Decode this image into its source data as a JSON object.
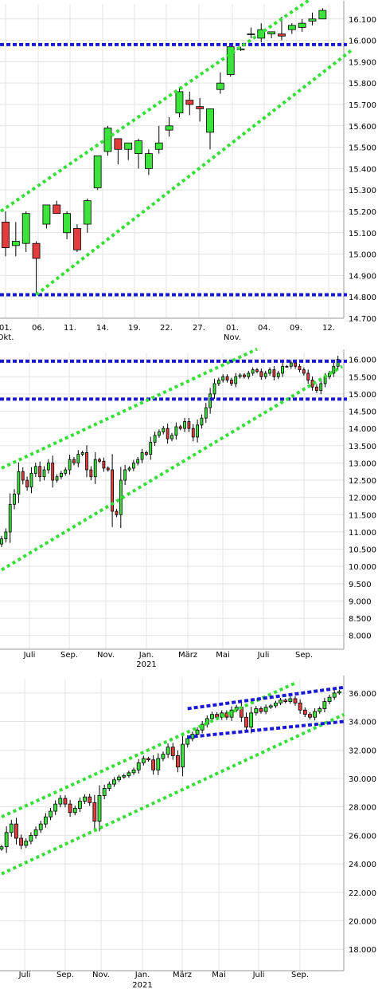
{
  "chart_data": [
    {
      "type": "candlestick",
      "ylim": [
        14700,
        16170
      ],
      "y_ticks": [
        "16.100",
        "16.000",
        "15.900",
        "15.800",
        "15.700",
        "15.600",
        "15.500",
        "15.400",
        "15.300",
        "15.200",
        "15.100",
        "15.000",
        "14.900",
        "14.800",
        "14.700"
      ],
      "y_tick_values": [
        16100,
        16000,
        15900,
        15800,
        15700,
        15600,
        15500,
        15400,
        15300,
        15200,
        15100,
        15000,
        14900,
        14800,
        14700
      ],
      "x_ticks": [
        {
          "label": "01.",
          "sub": "Okt.",
          "i": 0
        },
        {
          "label": "06.",
          "sub": "",
          "i": 3
        },
        {
          "label": "11.",
          "sub": "",
          "i": 6
        },
        {
          "label": "14.",
          "sub": "",
          "i": 9
        },
        {
          "label": "19.",
          "sub": "",
          "i": 12
        },
        {
          "label": "22.",
          "sub": "",
          "i": 15
        },
        {
          "label": "27.",
          "sub": "",
          "i": 18
        },
        {
          "label": "01.",
          "sub": "Nov.",
          "i": 21
        },
        {
          "label": "04.",
          "sub": "",
          "i": 24
        },
        {
          "label": "09.",
          "sub": "",
          "i": 27
        },
        {
          "label": "12.",
          "sub": "",
          "i": 30
        }
      ],
      "candles": [
        [
          15150,
          15200,
          14990,
          15030
        ],
        [
          15040,
          15150,
          14990,
          15060
        ],
        [
          15050,
          15200,
          15010,
          15190
        ],
        [
          15050,
          15060,
          14820,
          14980
        ],
        [
          15140,
          15230,
          15120,
          15230
        ],
        [
          15230,
          15250,
          15190,
          15190
        ],
        [
          15100,
          15200,
          15070,
          15190
        ],
        [
          15120,
          15140,
          15010,
          15020
        ],
        [
          15140,
          15260,
          15100,
          15250
        ],
        [
          15310,
          15450,
          15300,
          15460
        ],
        [
          15480,
          15600,
          15460,
          15590
        ],
        [
          15540,
          15540,
          15420,
          15490
        ],
        [
          15490,
          15510,
          15440,
          15520
        ],
        [
          15470,
          15540,
          15400,
          15530
        ],
        [
          15400,
          15490,
          15370,
          15470
        ],
        [
          15490,
          15600,
          15470,
          15520
        ],
        [
          15580,
          15640,
          15550,
          15600
        ],
        [
          15660,
          15780,
          15640,
          15760
        ],
        [
          15720,
          15760,
          15650,
          15700
        ],
        [
          15690,
          15730,
          15620,
          15680
        ],
        [
          15570,
          15680,
          15490,
          15680
        ],
        [
          15770,
          15850,
          15750,
          15800
        ],
        [
          15840,
          15960,
          15830,
          15970
        ],
        [
          15960,
          15970,
          15950,
          15960
        ],
        [
          16030,
          16060,
          16010,
          16030
        ],
        [
          16010,
          16080,
          15990,
          16050
        ],
        [
          16030,
          16030,
          16010,
          16040
        ],
        [
          16030,
          16110,
          16000,
          16020
        ],
        [
          16050,
          16080,
          16030,
          16070
        ],
        [
          16060,
          16100,
          16040,
          16080
        ],
        [
          16090,
          16130,
          16070,
          16100
        ],
        [
          16100,
          16150,
          16100,
          16140
        ]
      ],
      "horizontal_lines": [
        15980,
        14810
      ],
      "trend_channel": {
        "upper": [
          [
            -2,
            15150
          ],
          [
            34,
            16330
          ]
        ],
        "lower": [
          [
            3,
            14810
          ],
          [
            34,
            15960
          ]
        ]
      }
    },
    {
      "type": "candlestick",
      "ylim": [
        7600,
        16200
      ],
      "y_ticks": [
        "16.000",
        "15.500",
        "15.000",
        "14.500",
        "14.000",
        "13.500",
        "13.000",
        "12.500",
        "12.000",
        "11.500",
        "11.000",
        "10.500",
        "10.000",
        "9.500",
        "9.000",
        "8.500",
        "8.000"
      ],
      "y_tick_values": [
        16000,
        15500,
        15000,
        14500,
        14000,
        13500,
        13000,
        12500,
        12000,
        11500,
        11000,
        10500,
        10000,
        9500,
        9000,
        8500,
        8000
      ],
      "x_ticks": [
        {
          "label": "Juli",
          "sub": ""
        },
        {
          "label": "Sep.",
          "sub": ""
        },
        {
          "label": "Nov.",
          "sub": ""
        },
        {
          "label": "Jan.",
          "sub": "2021"
        },
        {
          "label": "März",
          "sub": ""
        },
        {
          "label": "Mai",
          "sub": ""
        },
        {
          "label": "Juli",
          "sub": ""
        },
        {
          "label": "Sep.",
          "sub": ""
        }
      ],
      "closes": [
        10800,
        11000,
        11800,
        12100,
        12750,
        12500,
        12300,
        12700,
        12900,
        12600,
        12800,
        13000,
        12500,
        12600,
        12700,
        12800,
        13100,
        13000,
        13250,
        13300,
        12800,
        12600,
        13100,
        13050,
        12850,
        12800,
        11600,
        11500,
        12500,
        12800,
        12850,
        13000,
        13100,
        13300,
        13250,
        13600,
        13800,
        13900,
        14000,
        13700,
        13800,
        14050,
        14000,
        14200,
        14000,
        13750,
        14100,
        14300,
        14600,
        15000,
        15300,
        15400,
        15500,
        15400,
        15300,
        15500,
        15550,
        15500,
        15600,
        15700,
        15650,
        15500,
        15600,
        15700,
        15500,
        15600,
        15800,
        15800,
        15900,
        15800,
        15700,
        15600,
        15400,
        15200,
        15100,
        15300,
        15500,
        15600,
        15800,
        16000
      ],
      "horizontal_lines": [
        15950,
        14850
      ],
      "trend_channel": {
        "upper": [
          [
            0,
            12850
          ],
          [
            60,
            16300
          ]
        ],
        "lower": [
          [
            0,
            9900
          ],
          [
            80,
            15800
          ]
        ]
      }
    },
    {
      "type": "candlestick",
      "ylim": [
        16500,
        37000
      ],
      "y_ticks": [
        "36.000",
        "34.000",
        "32.000",
        "30.000",
        "28.000",
        "26.000",
        "24.000",
        "22.000",
        "20.000",
        "18.000"
      ],
      "y_tick_values": [
        36000,
        34000,
        32000,
        30000,
        28000,
        26000,
        24000,
        22000,
        20000,
        18000
      ],
      "x_ticks": [
        {
          "label": "Juli",
          "sub": ""
        },
        {
          "label": "Sep.",
          "sub": ""
        },
        {
          "label": "Nov.",
          "sub": ""
        },
        {
          "label": "Jan.",
          "sub": "2021"
        },
        {
          "label": "März",
          "sub": ""
        },
        {
          "label": "Mai",
          "sub": ""
        },
        {
          "label": "Juli",
          "sub": ""
        },
        {
          "label": "Sep.",
          "sub": ""
        }
      ],
      "closes": [
        25200,
        26200,
        26800,
        25800,
        25300,
        25600,
        26000,
        26400,
        26800,
        27300,
        27700,
        28200,
        28600,
        28200,
        27600,
        27900,
        28400,
        28700,
        28300,
        27000,
        28800,
        29300,
        29600,
        29900,
        30100,
        30200,
        30400,
        30600,
        31100,
        31400,
        31300,
        30600,
        31400,
        31700,
        32200,
        31600,
        30800,
        32400,
        32800,
        33100,
        33400,
        33800,
        34200,
        34500,
        34300,
        34600,
        34300,
        34800,
        35000,
        34300,
        33600,
        34600,
        34900,
        34700,
        35000,
        35100,
        35300,
        35500,
        35400,
        35600,
        35300,
        34800,
        34500,
        34300,
        34700,
        34900,
        35400,
        35700,
        36000,
        36100
      ],
      "horizontal_lines": [],
      "trend_channel": {
        "upper": [
          [
            0,
            27300
          ],
          [
            60,
            36700
          ]
        ],
        "lower": [
          [
            0,
            23300
          ],
          [
            70,
            34500
          ]
        ]
      },
      "blue_channel": {
        "upper": [
          [
            38,
            34900
          ],
          [
            70,
            36400
          ]
        ],
        "lower": [
          [
            38,
            32900
          ],
          [
            70,
            34000
          ]
        ]
      }
    }
  ]
}
